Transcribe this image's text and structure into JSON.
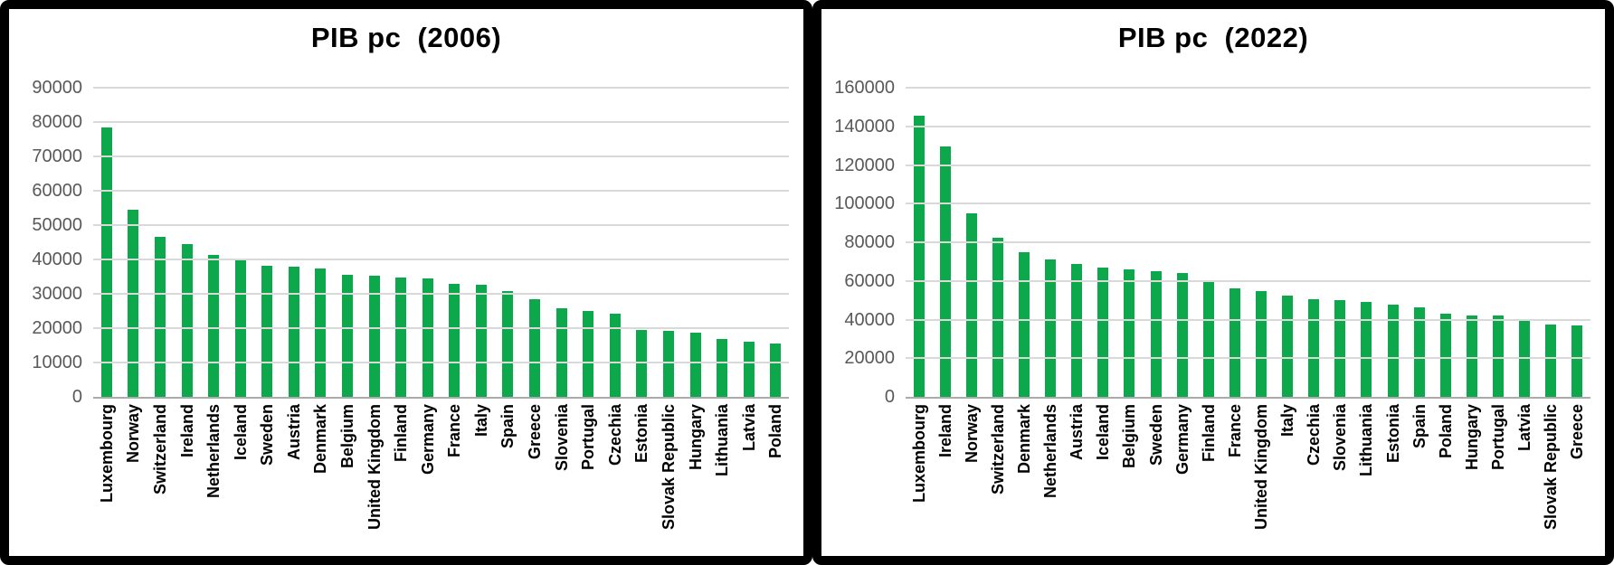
{
  "colors": {
    "bar_green": "#0da84c",
    "gridline": "#d9d9d9",
    "axis_line": "#ababab",
    "tick_text": "#595959",
    "title_text": "#000000",
    "panel_border": "#000000",
    "background": "#ffffff"
  },
  "chart_data": [
    {
      "type": "bar",
      "title": "PIB pc  (2006)",
      "xlabel": "",
      "ylabel": "",
      "ylim": [
        0,
        90000
      ],
      "yticks": [
        0,
        10000,
        20000,
        30000,
        40000,
        50000,
        60000,
        70000,
        80000,
        90000
      ],
      "grid": true,
      "legend": "none",
      "bar_color": "#0da84c",
      "categories": [
        "Luxembourg",
        "Norway",
        "Switzerland",
        "Ireland",
        "Netherlands",
        "Iceland",
        "Sweden",
        "Austria",
        "Denmark",
        "Belgium",
        "United Kingdom",
        "Finland",
        "Germany",
        "France",
        "Italy",
        "Spain",
        "Greece",
        "Slovenia",
        "Portugal",
        "Czechia",
        "Estonia",
        "Slovak Republic",
        "Hungary",
        "Lithuania",
        "Latvia",
        "Poland"
      ],
      "values": [
        78500,
        54500,
        46500,
        44500,
        41300,
        40000,
        38100,
        37800,
        37400,
        35500,
        35200,
        34800,
        34400,
        32900,
        32700,
        30900,
        28500,
        25900,
        25000,
        24300,
        19600,
        19200,
        18700,
        16900,
        16100,
        15600
      ]
    },
    {
      "type": "bar",
      "title": "PIB pc  (2022)",
      "xlabel": "",
      "ylabel": "",
      "ylim": [
        0,
        160000
      ],
      "yticks": [
        0,
        20000,
        40000,
        60000,
        80000,
        100000,
        120000,
        140000,
        160000
      ],
      "grid": true,
      "legend": "none",
      "bar_color": "#0da84c",
      "categories": [
        "Luxembourg",
        "Ireland",
        "Norway",
        "Switzerland",
        "Denmark",
        "Netherlands",
        "Austria",
        "Iceland",
        "Belgium",
        "Sweden",
        "Germany",
        "Finland",
        "France",
        "United Kingdom",
        "Italy",
        "Czechia",
        "Slovenia",
        "Lithuania",
        "Estonia",
        "Spain",
        "Poland",
        "Hungary",
        "Portugal",
        "Latvia",
        "Slovak Republic",
        "Greece"
      ],
      "values": [
        145500,
        129500,
        95200,
        82500,
        74800,
        71100,
        68700,
        66800,
        66000,
        65200,
        64300,
        59700,
        56000,
        54800,
        52200,
        50400,
        50200,
        49300,
        47500,
        46400,
        43200,
        42300,
        42000,
        40200,
        37500,
        37000
      ]
    }
  ]
}
